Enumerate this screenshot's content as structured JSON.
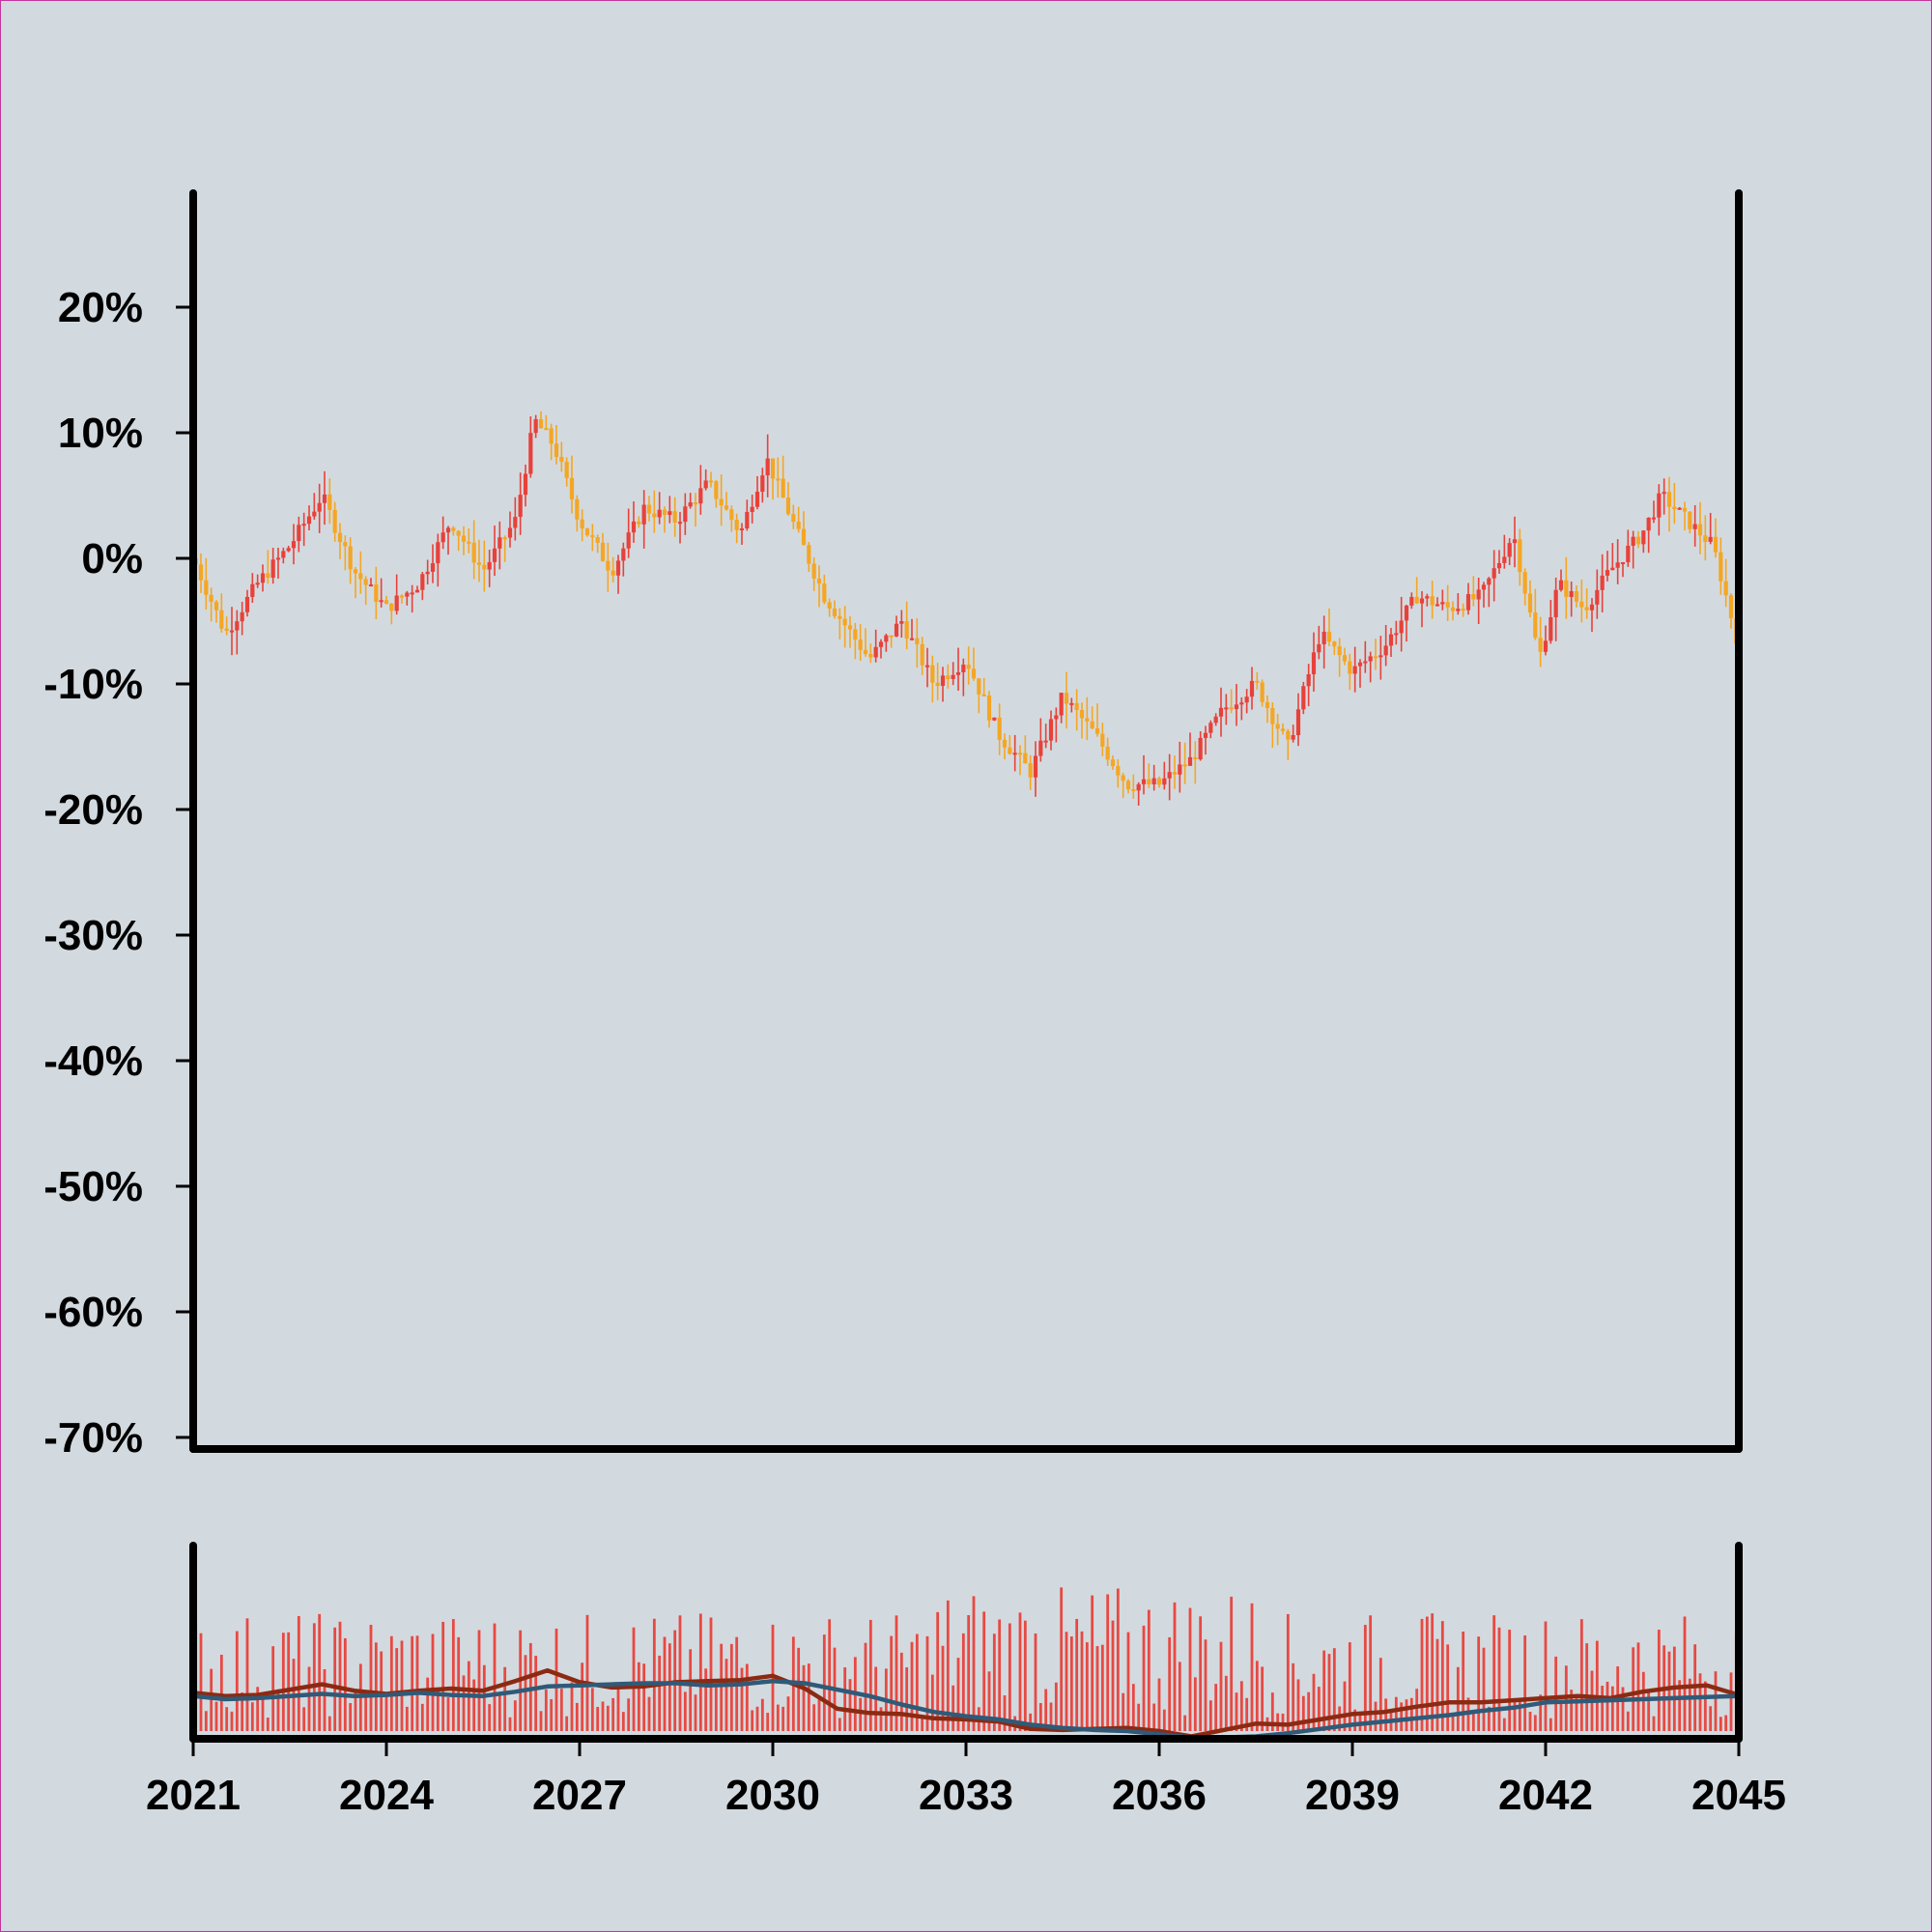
{
  "chart_data": [
    {
      "type": "candlestick",
      "title": "",
      "xlabel": "",
      "ylabel": "",
      "xlim": [
        2021,
        2045
      ],
      "ylim": [
        -70,
        28
      ],
      "y_ticks": [
        "20%",
        "10%",
        "0%",
        "-10%",
        "-20%",
        "-30%",
        "-40%",
        "-50%",
        "-60%",
        "-70%"
      ],
      "y_tick_values": [
        20,
        10,
        0,
        -10,
        -20,
        -30,
        -40,
        -50,
        -60,
        -70
      ],
      "grid": false,
      "up_color": "#e8413a",
      "down_color": "#f5a623",
      "series": [
        {
          "x": [
            2021.0,
            2021.5,
            2022.0,
            2022.5,
            2023.0,
            2023.5,
            2024.0,
            2024.5,
            2025.0,
            2025.5,
            2026.0,
            2026.3,
            2026.6,
            2027.0,
            2027.5,
            2028.0,
            2028.5,
            2029.0,
            2029.5,
            2029.9,
            2030.3,
            2030.8,
            2031.5,
            2032.0,
            2032.5,
            2033.0,
            2033.5,
            2034.0,
            2034.5,
            2035.0,
            2035.5,
            2036.0,
            2036.5,
            2037.0,
            2037.5,
            2038.0,
            2038.5,
            2039.0,
            2039.5,
            2040.0,
            2040.5,
            2041.0,
            2041.5,
            2041.9,
            2042.2,
            2042.6,
            2043.0,
            2043.5,
            2043.8,
            2044.2,
            2044.6,
            2045.0
          ],
          "y": [
            0,
            -6,
            -2,
            1,
            5,
            -1,
            -4,
            -2,
            3,
            -1,
            3,
            11,
            9,
            3,
            -1,
            4,
            3,
            6,
            2,
            8,
            3,
            -3,
            -8,
            -5,
            -10,
            -8,
            -14,
            -17,
            -11,
            -14,
            -18,
            -18,
            -16,
            -12,
            -10,
            -15,
            -6,
            -9,
            -7,
            -3,
            -4,
            -3,
            2,
            -8,
            -2,
            -4,
            -1,
            2,
            5,
            3,
            1,
            -7
          ]
        }
      ]
    },
    {
      "type": "bar",
      "title": "",
      "xlim": [
        2021,
        2045
      ],
      "x_ticks": [
        "2021",
        "2024",
        "2027",
        "2030",
        "2033",
        "2036",
        "2039",
        "2042",
        "2045"
      ],
      "x_tick_values": [
        2021,
        2024,
        2027,
        2030,
        2033,
        2036,
        2039,
        2042,
        2045
      ],
      "bar_color": "#e8413a",
      "series": [
        {
          "type": "line",
          "color": "#8b2a12",
          "x": [
            2021.0,
            2021.5,
            2022.0,
            2022.5,
            2023.0,
            2023.5,
            2024.0,
            2024.5,
            2025.0,
            2025.5,
            2026.0,
            2026.5,
            2027.0,
            2027.5,
            2028.0,
            2028.5,
            2029.0,
            2029.5,
            2030.0,
            2030.5,
            2031.0,
            2031.5,
            2032.0,
            2032.5,
            2033.0,
            2033.5,
            2034.0,
            2034.5,
            2035.0,
            2035.5,
            2036.0,
            2036.5,
            2037.0,
            2037.5,
            2038.0,
            2038.5,
            2039.0,
            2039.5,
            2040.0,
            2040.5,
            2041.0,
            2041.5,
            2042.0,
            2042.5,
            2043.0,
            2043.5,
            2044.0,
            2044.5,
            2045.0
          ],
          "y": [
            0.36,
            0.33,
            0.34,
            0.39,
            0.44,
            0.38,
            0.35,
            0.38,
            0.4,
            0.38,
            0.47,
            0.57,
            0.46,
            0.41,
            0.42,
            0.46,
            0.47,
            0.48,
            0.52,
            0.4,
            0.21,
            0.17,
            0.16,
            0.12,
            0.11,
            0.09,
            0.02,
            0.01,
            0.02,
            0.03,
            0.0,
            -0.05,
            0.01,
            0.07,
            0.06,
            0.11,
            0.16,
            0.18,
            0.23,
            0.27,
            0.27,
            0.29,
            0.31,
            0.33,
            0.31,
            0.37,
            0.41,
            0.43,
            0.34
          ]
        },
        {
          "type": "line",
          "color": "#2f5a78",
          "x": [
            2021.0,
            2021.5,
            2022.0,
            2022.5,
            2023.0,
            2023.5,
            2024.0,
            2024.5,
            2025.0,
            2025.5,
            2026.0,
            2026.5,
            2027.0,
            2027.5,
            2028.0,
            2028.5,
            2029.0,
            2029.5,
            2030.0,
            2030.5,
            2031.0,
            2031.5,
            2032.0,
            2032.5,
            2033.0,
            2033.5,
            2034.0,
            2034.5,
            2035.0,
            2035.5,
            2036.0,
            2036.5,
            2037.0,
            2037.5,
            2038.0,
            2038.5,
            2039.0,
            2039.5,
            2040.0,
            2040.5,
            2041.0,
            2041.5,
            2042.0,
            2042.5,
            2043.0,
            2043.5,
            2044.0,
            2044.5,
            2045.0
          ],
          "y": [
            0.33,
            0.3,
            0.31,
            0.33,
            0.35,
            0.33,
            0.34,
            0.36,
            0.34,
            0.33,
            0.37,
            0.42,
            0.43,
            0.44,
            0.45,
            0.45,
            0.43,
            0.44,
            0.47,
            0.45,
            0.39,
            0.33,
            0.25,
            0.18,
            0.14,
            0.11,
            0.06,
            0.03,
            0.01,
            0.0,
            -0.03,
            -0.06,
            -0.06,
            -0.05,
            -0.02,
            0.02,
            0.06,
            0.09,
            0.12,
            0.15,
            0.19,
            0.22,
            0.27,
            0.28,
            0.29,
            0.3,
            0.31,
            0.32,
            0.33
          ]
        }
      ]
    }
  ]
}
